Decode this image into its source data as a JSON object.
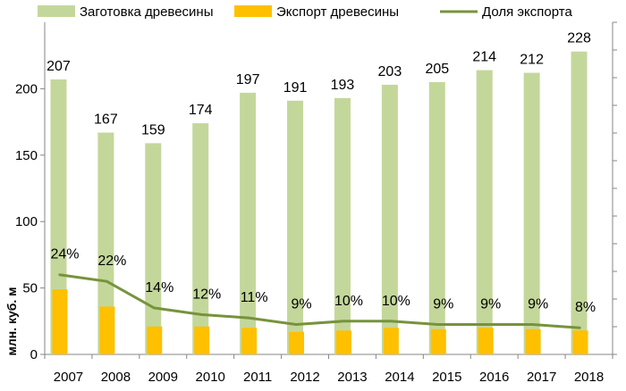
{
  "chart_data": {
    "type": "bar",
    "title": "",
    "xlabel": "",
    "ylabel": "млн. куб. м",
    "ylim": [
      0,
      250
    ],
    "yticks": [
      0,
      50,
      100,
      150,
      200
    ],
    "y2lim": [
      0,
      1
    ],
    "grid": false,
    "legend_position": "top",
    "categories": [
      "2007",
      "2008",
      "2009",
      "2010",
      "2011",
      "2012",
      "2013",
      "2014",
      "2015",
      "2016",
      "2017",
      "2018"
    ],
    "series": [
      {
        "name": "Заготовка древесины",
        "kind": "bar",
        "color": "#c4d79b",
        "values": [
          207,
          167,
          159,
          174,
          197,
          191,
          193,
          203,
          205,
          214,
          212,
          228
        ],
        "labels": [
          "207",
          "167",
          "159",
          "174",
          "197",
          "191",
          "193",
          "203",
          "205",
          "214",
          "212",
          "228"
        ]
      },
      {
        "name": "Экспорт древесины",
        "kind": "bar",
        "color": "#ffc000",
        "values": [
          49,
          36,
          21,
          21,
          20,
          17,
          18,
          20,
          19,
          20,
          19,
          18
        ]
      },
      {
        "name": "Доля экспорта",
        "kind": "line",
        "axis": "right",
        "color": "#77933c",
        "values": [
          0.24,
          0.22,
          0.14,
          0.12,
          0.11,
          0.09,
          0.1,
          0.1,
          0.09,
          0.09,
          0.09,
          0.08
        ],
        "labels": [
          "24%",
          "22%",
          "14%",
          "12%",
          "11%",
          "9%",
          "10%",
          "10%",
          "9%",
          "9%",
          "9%",
          "8%"
        ]
      }
    ]
  }
}
